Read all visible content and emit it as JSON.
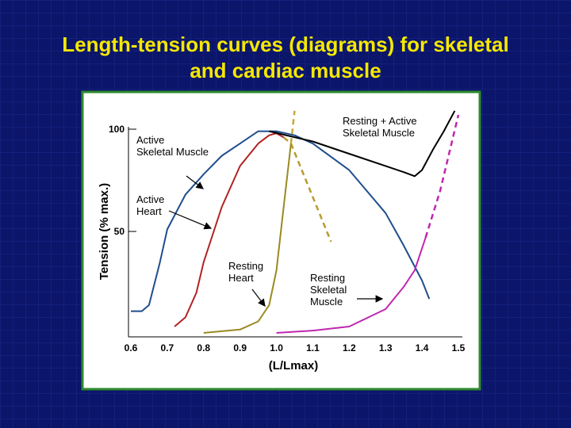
{
  "chart_data": {
    "type": "line",
    "title": "Length-tension curves (diagrams) for skeletal and cardiac muscle",
    "x_label": "(L/Lmax)",
    "y_label": "Tension (% max.)",
    "xlim": [
      0.6,
      1.5
    ],
    "ylim": [
      0,
      100
    ],
    "xticks": [
      0.6,
      0.7,
      0.8,
      0.9,
      {
        "value": 1.0,
        "label": "1.0"
      },
      1.1,
      1.2,
      1.3,
      1.4,
      1.5
    ],
    "yticks": [
      50,
      100
    ],
    "series": [
      {
        "label": [
          "Active",
          "Skeletal Muscle"
        ],
        "color": "#1f4e8c",
        "x": [
          0.6,
          0.63,
          0.65,
          0.68,
          0.7,
          0.75,
          0.8,
          0.85,
          0.9,
          0.95,
          1.0,
          1.05,
          1.1,
          1.2,
          1.3,
          1.35,
          1.4,
          1.42
        ],
        "values": [
          11,
          11,
          14,
          35,
          51,
          68,
          78,
          87,
          93,
          99,
          99,
          97,
          93,
          80,
          59,
          43,
          26,
          17
        ]
      },
      {
        "label": [
          "Active",
          "Heart"
        ],
        "color": "#b22222",
        "dash_color": "#b89a30",
        "dash_start": 9,
        "x": [
          0.72,
          0.75,
          0.78,
          0.8,
          0.85,
          0.9,
          0.95,
          0.98,
          1.0,
          1.02,
          1.04,
          1.15
        ],
        "values": [
          3.5,
          8,
          20,
          35,
          62,
          82,
          93,
          97,
          98,
          96,
          93,
          45
        ]
      },
      {
        "label": [
          "Resting",
          "Heart"
        ],
        "color": "#9a8a20",
        "dash_color": "#c8a838",
        "dash_start": 6,
        "x": [
          0.8,
          0.9,
          0.95,
          0.98,
          1.0,
          1.02,
          1.04,
          1.05
        ],
        "values": [
          0.4,
          2,
          6,
          14,
          31,
          62,
          93,
          109
        ]
      },
      {
        "label": [
          "Resting + Active",
          "Skeletal Muscle"
        ],
        "color": "#000000",
        "x": [
          0.98,
          1.1,
          1.2,
          1.3,
          1.35,
          1.38,
          1.4,
          1.43,
          1.46,
          1.49
        ],
        "values": [
          99,
          94,
          88,
          82,
          79,
          77,
          80,
          90,
          99,
          109
        ]
      },
      {
        "label": [
          "Resting",
          "Skeletal",
          "Muscle"
        ],
        "color": "#c026b0",
        "dash_color": "#c026b0",
        "dash_start": 6,
        "x": [
          1.0,
          1.1,
          1.2,
          1.3,
          1.35,
          1.38,
          1.41,
          1.45,
          1.5
        ],
        "values": [
          0.4,
          1.5,
          3.5,
          12,
          23,
          31,
          47,
          70,
          107
        ]
      }
    ]
  }
}
